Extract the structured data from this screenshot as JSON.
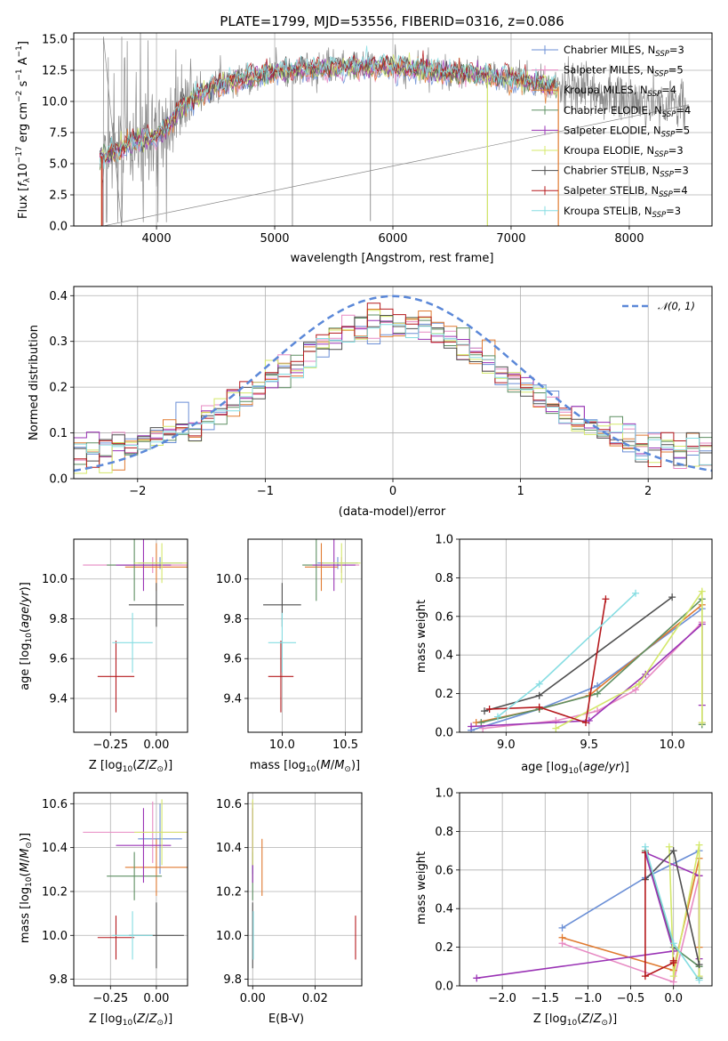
{
  "title": "PLATE=1799, MJD=53556, FIBERID=0316, z=0.086",
  "colors": {
    "c1": "#6b8fd6",
    "c2": "#e78ac3",
    "c3": "#e07a30",
    "c4": "#5e8f62",
    "c5": "#9a33b5",
    "c6": "#d4e86a",
    "c7": "#4f4f4f",
    "c8": "#b5191d",
    "c9": "#86dde2",
    "data": "#888888",
    "gauss": "#5b88d8"
  },
  "models": [
    {
      "name": "Chabrier MILES",
      "nssp": "3",
      "color": "c1"
    },
    {
      "name": "Salpeter MILES",
      "nssp": "5",
      "color": "c2"
    },
    {
      "name": "Kroupa MILES",
      "nssp": "4",
      "color": "c3"
    },
    {
      "name": "Chabrier ELODIE",
      "nssp": "4",
      "color": "c4"
    },
    {
      "name": "Salpeter ELODIE",
      "nssp": "5",
      "color": "c5"
    },
    {
      "name": "Kroupa ELODIE",
      "nssp": "3",
      "color": "c6"
    },
    {
      "name": "Chabrier STELIB",
      "nssp": "3",
      "color": "c7"
    },
    {
      "name": "Salpeter STELIB",
      "nssp": "4",
      "color": "c8"
    },
    {
      "name": "Kroupa STELIB",
      "nssp": "3",
      "color": "c9"
    }
  ],
  "chart_data": [
    {
      "id": "spectrum",
      "type": "line",
      "xlabel": "wavelength [Angstrom, rest frame]",
      "ylabel": "Flux [f_λ10^-17 erg cm^-2 s^-1 A^-1]",
      "xlim": [
        3300,
        8700
      ],
      "ylim": [
        0,
        15.5
      ],
      "xticks": [
        4000,
        5000,
        6000,
        7000,
        8000
      ],
      "yticks": [
        0.0,
        2.5,
        5.0,
        7.5,
        10.0,
        12.5,
        15.0
      ],
      "continuum": {
        "x": [
          3500,
          3600,
          3700,
          3800,
          3900,
          4000,
          4100,
          4200,
          4300,
          4400,
          4500,
          4600,
          4700,
          4800,
          4900,
          5000,
          5200,
          5400,
          5600,
          5800,
          6000,
          6200,
          6400,
          6600,
          6800,
          7000,
          7200,
          7400,
          7600,
          7800,
          8000,
          8200,
          8500
        ],
        "y": [
          5.5,
          5.8,
          6.3,
          6.8,
          7.0,
          7.3,
          8.1,
          9.5,
          10.2,
          10.8,
          11.3,
          11.6,
          11.8,
          12.0,
          12.2,
          12.4,
          12.6,
          12.7,
          12.8,
          12.9,
          12.8,
          12.6,
          12.4,
          12.3,
          12.1,
          11.9,
          11.5,
          11.2,
          10.9,
          10.5,
          10.1,
          9.9,
          9.7
        ]
      },
      "features": [
        {
          "wavelength": 3550,
          "depth": 9.5,
          "kind": "up"
        },
        {
          "wavelength": 3705,
          "depth": 10.0,
          "kind": "up"
        },
        {
          "wavelength": 5150,
          "depth": 13.0
        },
        {
          "wavelength": 5810,
          "depth": 12.5
        },
        {
          "wavelength": 6800,
          "depth": 12.0
        }
      ]
    },
    {
      "id": "residuals",
      "type": "histogram",
      "xlabel": "(data-model)/error",
      "ylabel": "Normed distribution",
      "xlim": [
        -2.5,
        2.5
      ],
      "ylim": [
        0,
        0.42
      ],
      "xticks": [
        -2,
        -1,
        0,
        1,
        2
      ],
      "yticks": [
        0.0,
        0.1,
        0.2,
        0.3,
        0.4
      ],
      "legend": "N(0,1)",
      "gaussian": {
        "mean": 0,
        "sigma": 1
      }
    },
    {
      "id": "age-Z",
      "type": "errorbar",
      "xlabel": "Z [log10(Z/Z⊙)]",
      "ylabel": "age [log10(age/yr)]",
      "xlim": [
        -0.45,
        0.17
      ],
      "ylim": [
        9.23,
        10.2
      ],
      "xticks": [
        -0.25,
        0.0
      ],
      "yticks": [
        9.4,
        9.6,
        9.8,
        10.0
      ],
      "points": [
        {
          "color": "c1",
          "x": 0.02,
          "y": 10.08,
          "xerr": 0.12,
          "yerr": 0.03
        },
        {
          "color": "c2",
          "x": -0.02,
          "y": 10.07,
          "xerr": 0.38,
          "yerr": 0.04
        },
        {
          "color": "c3",
          "x": 0.0,
          "y": 10.06,
          "xerr": 0.17,
          "yerr": 0.12
        },
        {
          "color": "c4",
          "x": -0.12,
          "y": 10.07,
          "xerr": 0.15,
          "yerr": 0.18
        },
        {
          "color": "c5",
          "x": -0.07,
          "y": 10.07,
          "xerr": 0.15,
          "yerr": 0.13
        },
        {
          "color": "c6",
          "x": 0.03,
          "y": 10.08,
          "xerr": 0.15,
          "yerr": 0.1
        },
        {
          "color": "c7",
          "x": 0.0,
          "y": 9.87,
          "xerr": 0.15,
          "yerr": 0.11
        },
        {
          "color": "c8",
          "x": -0.22,
          "y": 9.51,
          "xerr": 0.1,
          "yerr": 0.18
        },
        {
          "color": "c9",
          "x": -0.13,
          "y": 9.68,
          "xerr": 0.11,
          "yerr": 0.15
        }
      ]
    },
    {
      "id": "age-mass",
      "type": "errorbar",
      "xlabel": "mass [log10(M/M⊙)]",
      "ylabel": "",
      "xlim": [
        9.73,
        10.63
      ],
      "ylim": [
        9.23,
        10.2
      ],
      "xticks": [
        10.0,
        10.5
      ],
      "yticks": [
        9.4,
        9.6,
        9.8,
        10.0
      ],
      "points": [
        {
          "color": "c1",
          "x": 10.44,
          "y": 10.08,
          "xerr": 0.16,
          "yerr": 0.03
        },
        {
          "color": "c2",
          "x": 10.47,
          "y": 10.07,
          "xerr": 0.14,
          "yerr": 0.04
        },
        {
          "color": "c3",
          "x": 10.31,
          "y": 10.06,
          "xerr": 0.13,
          "yerr": 0.12
        },
        {
          "color": "c4",
          "x": 10.27,
          "y": 10.07,
          "xerr": 0.11,
          "yerr": 0.18
        },
        {
          "color": "c5",
          "x": 10.41,
          "y": 10.07,
          "xerr": 0.17,
          "yerr": 0.13
        },
        {
          "color": "c6",
          "x": 10.47,
          "y": 10.08,
          "xerr": 0.15,
          "yerr": 0.1
        },
        {
          "color": "c7",
          "x": 10.0,
          "y": 9.87,
          "xerr": 0.15,
          "yerr": 0.11
        },
        {
          "color": "c8",
          "x": 9.99,
          "y": 9.51,
          "xerr": 0.1,
          "yerr": 0.18
        },
        {
          "color": "c9",
          "x": 10.0,
          "y": 9.68,
          "xerr": 0.11,
          "yerr": 0.15
        }
      ]
    },
    {
      "id": "weight-age",
      "type": "line",
      "xlabel": "age [log10(age/yr)]",
      "ylabel": "mass weight",
      "xlim": [
        8.72,
        10.24
      ],
      "ylim": [
        0,
        1.0
      ],
      "xticks": [
        9.0,
        9.5,
        10.0
      ],
      "yticks": [
        0.0,
        0.2,
        0.4,
        0.6,
        0.8,
        1.0
      ],
      "series": [
        {
          "color": "c1",
          "x": [
            8.79,
            9.2,
            9.55,
            10.18
          ],
          "y": [
            0.01,
            0.12,
            0.24,
            0.64
          ]
        },
        {
          "color": "c2",
          "x": [
            8.86,
            9.3,
            9.55,
            9.78,
            10.18,
            10.18
          ],
          "y": [
            0.02,
            0.06,
            0.11,
            0.22,
            0.57,
            0.05
          ]
        },
        {
          "color": "c3",
          "x": [
            8.82,
            9.2,
            9.5,
            10.18
          ],
          "y": [
            0.05,
            0.12,
            0.19,
            0.66
          ]
        },
        {
          "color": "c4",
          "x": [
            8.85,
            9.2,
            9.55,
            10.18,
            10.18
          ],
          "y": [
            0.05,
            0.12,
            0.2,
            0.69,
            0.04
          ]
        },
        {
          "color": "c5",
          "x": [
            8.79,
            9.5,
            9.84,
            10.18,
            10.18
          ],
          "y": [
            0.03,
            0.06,
            0.3,
            0.56,
            0.14
          ]
        },
        {
          "color": "c6",
          "x": [
            9.3,
            9.8,
            10.18,
            10.18
          ],
          "y": [
            0.02,
            0.25,
            0.73,
            0.05
          ]
        },
        {
          "color": "c7",
          "x": [
            8.87,
            9.2,
            10.0
          ],
          "y": [
            0.11,
            0.19,
            0.7
          ]
        },
        {
          "color": "c8",
          "x": [
            8.9,
            9.2,
            9.48,
            9.6
          ],
          "y": [
            0.12,
            0.13,
            0.05,
            0.69
          ]
        },
        {
          "color": "c9",
          "x": [
            8.95,
            9.2,
            9.78
          ],
          "y": [
            0.08,
            0.25,
            0.72
          ]
        }
      ]
    },
    {
      "id": "mass-Z",
      "type": "errorbar",
      "xlabel": "Z [log10(Z/Z⊙)]",
      "ylabel": "mass [log10(M/M⊙)]",
      "xlim": [
        -0.45,
        0.17
      ],
      "ylim": [
        9.77,
        10.65
      ],
      "xticks": [
        -0.25,
        0.0
      ],
      "yticks": [
        9.8,
        10.0,
        10.2,
        10.4,
        10.6
      ],
      "points": [
        {
          "color": "c1",
          "x": 0.02,
          "y": 10.44,
          "xerr": 0.12,
          "yerr": 0.16
        },
        {
          "color": "c2",
          "x": -0.02,
          "y": 10.47,
          "xerr": 0.38,
          "yerr": 0.14
        },
        {
          "color": "c3",
          "x": 0.0,
          "y": 10.31,
          "xerr": 0.17,
          "yerr": 0.13
        },
        {
          "color": "c4",
          "x": -0.12,
          "y": 10.27,
          "xerr": 0.15,
          "yerr": 0.11
        },
        {
          "color": "c5",
          "x": -0.07,
          "y": 10.41,
          "xerr": 0.15,
          "yerr": 0.17
        },
        {
          "color": "c6",
          "x": 0.03,
          "y": 10.47,
          "xerr": 0.15,
          "yerr": 0.15
        },
        {
          "color": "c7",
          "x": 0.0,
          "y": 10.0,
          "xerr": 0.15,
          "yerr": 0.15
        },
        {
          "color": "c8",
          "x": -0.22,
          "y": 9.99,
          "xerr": 0.1,
          "yerr": 0.1
        },
        {
          "color": "c9",
          "x": -0.13,
          "y": 10.0,
          "xerr": 0.11,
          "yerr": 0.11
        }
      ]
    },
    {
      "id": "mass-ebv",
      "type": "errorbar",
      "xlabel": "E(B-V)",
      "ylabel": "",
      "xlim": [
        -0.0015,
        0.035
      ],
      "ylim": [
        9.77,
        10.65
      ],
      "xticks": [
        0.0,
        0.02
      ],
      "yticks": [
        9.8,
        10.0,
        10.2,
        10.4,
        10.6
      ],
      "points": [
        {
          "color": "c1",
          "x": 0.0,
          "y": 10.44,
          "xerr": 0,
          "yerr": 0.16
        },
        {
          "color": "c2",
          "x": 0.0,
          "y": 10.47,
          "xerr": 0,
          "yerr": 0.14
        },
        {
          "color": "c3",
          "x": 0.003,
          "y": 10.31,
          "xerr": 0,
          "yerr": 0.13
        },
        {
          "color": "c4",
          "x": 0.0,
          "y": 10.27,
          "xerr": 0,
          "yerr": 0.11
        },
        {
          "color": "c5",
          "x": 0.0,
          "y": 10.41,
          "xerr": 0,
          "yerr": 0.17
        },
        {
          "color": "c6",
          "x": 0.0,
          "y": 10.47,
          "xerr": 0,
          "yerr": 0.15
        },
        {
          "color": "c7",
          "x": 0.0,
          "y": 10.0,
          "xerr": 0,
          "yerr": 0.15
        },
        {
          "color": "c8",
          "x": 0.033,
          "y": 9.99,
          "xerr": 0,
          "yerr": 0.1
        },
        {
          "color": "c9",
          "x": 0.0002,
          "y": 10.0,
          "xerr": 0,
          "yerr": 0.11
        }
      ]
    },
    {
      "id": "weight-Z",
      "type": "line",
      "xlabel": "Z [log10(Z/Z⊙)]",
      "ylabel": "mass weight",
      "xlim": [
        -2.5,
        0.45
      ],
      "ylim": [
        0,
        1.0
      ],
      "xticks": [
        -2.0,
        -1.5,
        -1.0,
        -0.5,
        0.0
      ],
      "yticks": [
        0.0,
        0.2,
        0.4,
        0.6,
        0.8,
        1.0
      ],
      "series": [
        {
          "color": "c1",
          "x": [
            -1.3,
            -0.33,
            0.3
          ],
          "y": [
            0.3,
            0.56,
            0.7
          ]
        },
        {
          "color": "c2",
          "x": [
            -1.3,
            0.0,
            0.3,
            0.3
          ],
          "y": [
            0.22,
            0.02,
            0.57,
            0.05
          ]
        },
        {
          "color": "c3",
          "x": [
            -1.3,
            0.0,
            0.3,
            0.3
          ],
          "y": [
            0.25,
            0.08,
            0.66,
            0.2
          ]
        },
        {
          "color": "c4",
          "x": [
            -0.33,
            0.0,
            0.3,
            0.3
          ],
          "y": [
            0.7,
            0.2,
            0.1,
            0.04
          ]
        },
        {
          "color": "c5",
          "x": [
            -2.3,
            0.0,
            -0.33,
            0.3,
            0.3
          ],
          "y": [
            0.04,
            0.18,
            0.69,
            0.57,
            0.14
          ]
        },
        {
          "color": "c6",
          "x": [
            -0.05,
            0.0,
            0.3,
            0.3
          ],
          "y": [
            0.72,
            0.05,
            0.73,
            0.05
          ]
        },
        {
          "color": "c7",
          "x": [
            -0.33,
            0.0,
            0.3
          ],
          "y": [
            0.55,
            0.7,
            0.11
          ]
        },
        {
          "color": "c8",
          "x": [
            -0.33,
            -0.33,
            0.0,
            0.0
          ],
          "y": [
            0.69,
            0.05,
            0.12,
            0.13
          ]
        },
        {
          "color": "c9",
          "x": [
            -0.33,
            0.0,
            0.3
          ],
          "y": [
            0.72,
            0.22,
            0.03
          ]
        }
      ]
    }
  ]
}
